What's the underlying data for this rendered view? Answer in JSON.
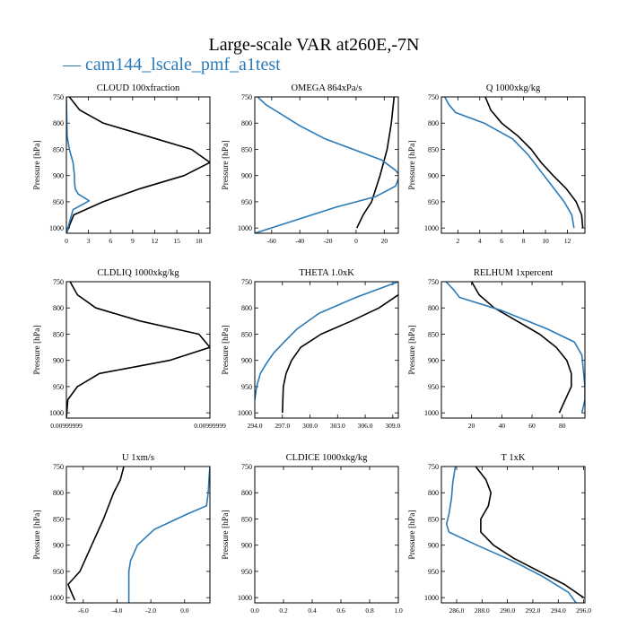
{
  "figure": {
    "title": "Large-scale VAR at260E,-7N",
    "legend": [
      {
        "label": "— cam144_lscale_pmf_a1test",
        "color": "#2a7ab8"
      }
    ],
    "ref_color": "#000000",
    "case_color": "#2a7ab8"
  },
  "chart_data": [
    {
      "type": "line",
      "title": "CLOUD 100xfraction",
      "ylabel": "Pressure [hPa]",
      "xlim": [
        0,
        19.5
      ],
      "ylim": [
        1010,
        750
      ],
      "y_ticks": [
        750,
        800,
        850,
        900,
        950,
        1000
      ],
      "x_ticks": [
        0,
        3,
        6,
        9,
        12,
        15,
        18
      ],
      "x_tick_labels": [
        "0",
        "3",
        "6",
        "9",
        "12",
        "15",
        "18"
      ],
      "series": [
        {
          "color": "#000000",
          "x": [
            0.4,
            1.8,
            5,
            11,
            17,
            19.5,
            16,
            10,
            5,
            1,
            0
          ],
          "y": [
            750,
            775,
            800,
            825,
            850,
            875,
            900,
            925,
            950,
            975,
            1010
          ]
        },
        {
          "color": "#2a7ab8",
          "x": [
            0,
            0.1,
            0.4,
            0.9,
            1.1,
            1.1,
            1.2,
            1.6,
            3.1,
            0.9,
            0
          ],
          "y": [
            750,
            825,
            850,
            875,
            900,
            910,
            925,
            935,
            948,
            965,
            1010
          ]
        }
      ]
    },
    {
      "type": "line",
      "title": "OMEGA 864xPa/s",
      "ylabel": "Pressure [hPa]",
      "xlim": [
        -72,
        30
      ],
      "ylim": [
        1010,
        750
      ],
      "y_ticks": [
        750,
        800,
        850,
        900,
        950,
        1000
      ],
      "x_ticks": [
        -60,
        -40,
        -20,
        0,
        20
      ],
      "x_tick_labels": [
        "-60",
        "-40",
        "-20",
        "0",
        "20"
      ],
      "series": [
        {
          "color": "#000000",
          "x": [
            27,
            25,
            22,
            17,
            11,
            5,
            0.5
          ],
          "y": [
            750,
            800,
            850,
            900,
            950,
            975,
            1000
          ]
        },
        {
          "color": "#2a7ab8",
          "x": [
            -70,
            -64,
            -55,
            -40,
            -22,
            -2,
            18,
            28,
            31,
            28,
            14,
            -14,
            -72
          ],
          "y": [
            750,
            765,
            780,
            805,
            830,
            850,
            870,
            890,
            900,
            920,
            940,
            960,
            1010
          ]
        }
      ]
    },
    {
      "type": "line",
      "title": "Q 1000xkg/kg",
      "ylabel": "Pressure [hPa]",
      "xlim": [
        0.5,
        13.6
      ],
      "ylim": [
        1010,
        750
      ],
      "y_ticks": [
        750,
        800,
        850,
        900,
        950,
        1000
      ],
      "x_ticks": [
        2,
        4,
        6,
        8,
        10,
        12
      ],
      "x_tick_labels": [
        "2",
        "4",
        "6",
        "8",
        "10",
        "12"
      ],
      "series": [
        {
          "color": "#000000",
          "x": [
            4.5,
            5,
            6,
            7.5,
            8.7,
            9.6,
            10.7,
            11.9,
            12.8,
            13.3,
            13.4
          ],
          "y": [
            750,
            775,
            800,
            825,
            850,
            875,
            900,
            925,
            950,
            975,
            1000
          ]
        },
        {
          "color": "#2a7ab8",
          "x": [
            0.8,
            1.2,
            1.8,
            4.4,
            7,
            8.4,
            9.5,
            10.6,
            11.7,
            12.4,
            12.6
          ],
          "y": [
            750,
            765,
            780,
            800,
            830,
            860,
            890,
            920,
            950,
            975,
            1000
          ]
        }
      ]
    },
    {
      "type": "line",
      "title": "CLDLIQ 1000xkg/kg",
      "ylabel": "Pressure [hPa]",
      "xlim": [
        0,
        19.5
      ],
      "ylim": [
        1010,
        750
      ],
      "y_ticks": [
        750,
        800,
        850,
        900,
        950,
        1000
      ],
      "x_ticks": [
        0,
        19.5
      ],
      "x_tick_labels": [
        "0.00999999",
        "0.00999999"
      ],
      "series": [
        {
          "color": "#000000",
          "x": [
            0.5,
            1.5,
            4,
            10,
            18,
            19.5,
            14,
            4.5,
            1.5,
            0.2,
            0
          ],
          "y": [
            750,
            775,
            800,
            825,
            850,
            875,
            900,
            925,
            950,
            975,
            1010
          ]
        }
      ]
    },
    {
      "type": "line",
      "title": "THETA 1.0xK",
      "ylabel": "Pressure [hPa]",
      "xlim": [
        294,
        309.6
      ],
      "ylim": [
        1010,
        750
      ],
      "y_ticks": [
        750,
        800,
        850,
        900,
        950,
        1000
      ],
      "x_ticks": [
        294,
        297,
        300,
        303,
        306,
        309
      ],
      "x_tick_labels": [
        "294.0",
        "297.0",
        "300.0",
        "303.0",
        "306.0",
        "309.0"
      ],
      "series": [
        {
          "color": "#000000",
          "x": [
            309.6,
            307.5,
            304.5,
            301.2,
            299,
            298,
            297.4,
            297.1,
            297.0
          ],
          "y": [
            775,
            800,
            825,
            850,
            875,
            900,
            925,
            950,
            1000
          ]
        },
        {
          "color": "#2a7ab8",
          "x": [
            309.6,
            305,
            301,
            298.6,
            297.2,
            296.1,
            295.3,
            294.6,
            294.2,
            294.0
          ],
          "y": [
            750,
            780,
            810,
            840,
            865,
            885,
            905,
            925,
            950,
            975
          ]
        }
      ]
    },
    {
      "type": "line",
      "title": "RELHUM 1xpercent",
      "ylabel": "Pressure [hPa]",
      "xlim": [
        0,
        95
      ],
      "ylim": [
        1010,
        750
      ],
      "y_ticks": [
        750,
        800,
        850,
        900,
        950,
        1000
      ],
      "x_ticks": [
        20,
        40,
        60,
        80
      ],
      "x_tick_labels": [
        "20",
        "40",
        "60",
        "80"
      ],
      "series": [
        {
          "color": "#000000",
          "x": [
            20,
            25,
            35,
            50,
            65,
            76,
            83,
            86,
            86,
            82,
            78
          ],
          "y": [
            750,
            775,
            800,
            825,
            850,
            875,
            900,
            925,
            950,
            975,
            1000
          ]
        },
        {
          "color": "#2a7ab8",
          "x": [
            3,
            8,
            12,
            40,
            70,
            88,
            93,
            94,
            95,
            95,
            93
          ],
          "y": [
            750,
            765,
            780,
            805,
            840,
            865,
            890,
            920,
            950,
            975,
            1000
          ]
        }
      ]
    },
    {
      "type": "line",
      "title": "U 1xm/s",
      "ylabel": "Pressure [hPa]",
      "xlim": [
        -7,
        1.5
      ],
      "ylim": [
        1010,
        750
      ],
      "y_ticks": [
        750,
        800,
        850,
        900,
        950,
        1000
      ],
      "x_ticks": [
        -6,
        -4,
        -2,
        0
      ],
      "x_tick_labels": [
        "-6.0",
        "-4.0",
        "-2.0",
        "0.0"
      ],
      "series": [
        {
          "color": "#000000",
          "x": [
            -3.6,
            -3.8,
            -4.2,
            -4.8,
            -5.5,
            -6.2,
            -6.9,
            -6.7,
            -6.5
          ],
          "y": [
            750,
            775,
            800,
            850,
            900,
            950,
            975,
            990,
            1005
          ]
        },
        {
          "color": "#2a7ab8",
          "x": [
            1.5,
            1.45,
            1.4,
            1.3,
            0.2,
            -0.8,
            -1.8,
            -2.8,
            -3.2,
            -3.3,
            -3.3
          ],
          "y": [
            750,
            770,
            800,
            825,
            840,
            855,
            870,
            900,
            930,
            950,
            1010
          ]
        }
      ]
    },
    {
      "type": "line",
      "title": "CLDICE 1000xkg/kg",
      "ylabel": "Pressure [hPa]",
      "xlim": [
        0,
        1
      ],
      "ylim": [
        1010,
        750
      ],
      "y_ticks": [
        750,
        800,
        850,
        900,
        950,
        1000
      ],
      "x_ticks": [
        0,
        0.2,
        0.4,
        0.6,
        0.8,
        1.0
      ],
      "x_tick_labels": [
        "0.0",
        "0.2",
        "0.4",
        "0.6",
        "0.8",
        "1.0"
      ],
      "series": []
    },
    {
      "type": "line",
      "title": "T 1xK",
      "ylabel": "Pressure [hPa]",
      "xlim": [
        284.8,
        296.1
      ],
      "ylim": [
        1010,
        750
      ],
      "y_ticks": [
        750,
        800,
        850,
        900,
        950,
        1000
      ],
      "x_ticks": [
        286,
        288,
        290,
        292,
        294,
        296
      ],
      "x_tick_labels": [
        "286.0",
        "288.0",
        "290.0",
        "292.0",
        "294.0",
        "296.0"
      ],
      "series": [
        {
          "color": "#000000",
          "x": [
            287.5,
            288.3,
            288.7,
            288.5,
            287.9,
            287.9,
            288.9,
            290.5,
            292.5,
            294.5,
            296.0
          ],
          "y": [
            750,
            775,
            800,
            825,
            850,
            875,
            900,
            925,
            950,
            975,
            1000
          ]
        },
        {
          "color": "#2a7ab8",
          "x": [
            285.9,
            285.7,
            285.6,
            285.4,
            285.2,
            285.4,
            287.6,
            290.4,
            292.8,
            294.8,
            295.4
          ],
          "y": [
            750,
            780,
            810,
            840,
            860,
            875,
            900,
            930,
            960,
            990,
            1010
          ]
        }
      ]
    }
  ]
}
